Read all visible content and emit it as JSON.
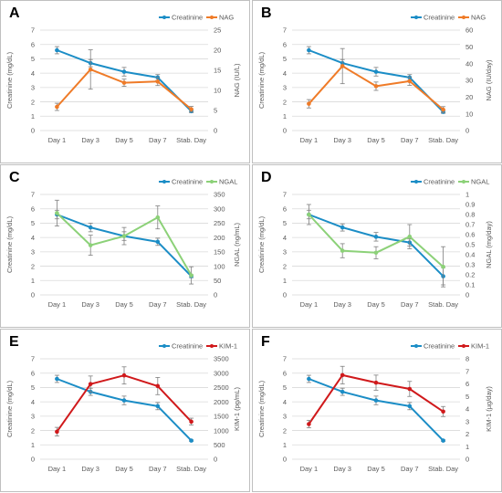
{
  "chart_data": [
    {
      "panel": "A",
      "type": "line",
      "categories": [
        "Day 1",
        "Day 3",
        "Day 5",
        "Day 7",
        "Stab. Day"
      ],
      "ylabel": "Creatinine (mg/dL)",
      "y2label": "NAG (IU/L)",
      "ylim": [
        0,
        7
      ],
      "yticks": [
        0,
        1,
        2,
        3,
        4,
        5,
        6,
        7
      ],
      "y2lim": [
        0,
        25
      ],
      "y2ticks": [
        0,
        5,
        10,
        15,
        20,
        25
      ],
      "grid": true,
      "legend_position": "top-right",
      "series": [
        {
          "name": "Creatinine",
          "axis": "left",
          "color": "#1b8dc6",
          "values": [
            5.6,
            4.7,
            4.1,
            3.7,
            1.35
          ],
          "errors": [
            0.25,
            0.25,
            0.3,
            0.2,
            0.1
          ]
        },
        {
          "name": "NAG",
          "axis": "right",
          "color": "#ef7b28",
          "values": [
            5.9,
            15.2,
            11.9,
            12.2,
            5.3
          ],
          "errors": [
            0.9,
            4.9,
            0.9,
            1.0,
            0.7
          ]
        }
      ]
    },
    {
      "panel": "B",
      "type": "line",
      "categories": [
        "Day 1",
        "Day 3",
        "Day 5",
        "Day 7",
        "Stab. Day"
      ],
      "ylabel": "Creatinine (mg/dL)",
      "y2label": "NAG (IU/day)",
      "ylim": [
        0,
        7
      ],
      "yticks": [
        0,
        1,
        2,
        3,
        4,
        5,
        6,
        7
      ],
      "y2lim": [
        0,
        60
      ],
      "y2ticks": [
        0,
        10,
        20,
        30,
        40,
        50,
        60
      ],
      "grid": true,
      "legend_position": "top-right",
      "series": [
        {
          "name": "Creatinine",
          "axis": "left",
          "color": "#1b8dc6",
          "values": [
            5.6,
            4.7,
            4.1,
            3.7,
            1.3
          ],
          "errors": [
            0.25,
            0.25,
            0.3,
            0.2,
            0.1
          ]
        },
        {
          "name": "NAG",
          "axis": "right",
          "color": "#ef7b28",
          "values": [
            16,
            38.5,
            26.5,
            29.5,
            12.5
          ],
          "errors": [
            2.5,
            10.5,
            2.5,
            2.5,
            1.8
          ]
        }
      ]
    },
    {
      "panel": "C",
      "type": "line",
      "categories": [
        "Day 1",
        "Day 3",
        "Day 5",
        "Day 7",
        "Stab. Day"
      ],
      "ylabel": "Creatinine (mg/dL)",
      "y2label": "NGAL (ng/mL)",
      "ylim": [
        0,
        7
      ],
      "yticks": [
        0,
        1,
        2,
        3,
        4,
        5,
        6,
        7
      ],
      "y2lim": [
        0,
        350
      ],
      "y2ticks": [
        0,
        50,
        100,
        150,
        200,
        250,
        300,
        350
      ],
      "grid": true,
      "legend_position": "top-right",
      "series": [
        {
          "name": "Creatinine",
          "axis": "left",
          "color": "#1b8dc6",
          "values": [
            5.6,
            4.7,
            4.1,
            3.7,
            1.3
          ],
          "errors": [
            0.3,
            0.3,
            0.3,
            0.25,
            0.1
          ]
        },
        {
          "name": "NGAL",
          "axis": "right",
          "color": "#8cd178",
          "values": [
            285,
            173,
            205,
            270,
            68
          ],
          "errors": [
            45,
            35,
            30,
            40,
            30
          ]
        }
      ]
    },
    {
      "panel": "D",
      "type": "line",
      "categories": [
        "Day 1",
        "Day 3",
        "Day 5",
        "Day 7",
        "Stab. Day"
      ],
      "ylabel": "Creatinine (mg/dL)",
      "y2label": "NGAL (mg/day)",
      "ylim": [
        0,
        7
      ],
      "yticks": [
        0,
        1,
        2,
        3,
        4,
        5,
        6,
        7
      ],
      "y2lim": [
        0,
        1.0
      ],
      "y2ticks": [
        0,
        0.1,
        0.2,
        0.3,
        0.4,
        0.5,
        0.6,
        0.7,
        0.8,
        0.9,
        1.0
      ],
      "grid": true,
      "legend_position": "top-right",
      "series": [
        {
          "name": "Creatinine",
          "axis": "left",
          "color": "#1b8dc6",
          "values": [
            5.6,
            4.7,
            4.05,
            3.65,
            1.3
          ],
          "errors": [
            0.3,
            0.25,
            0.3,
            0.25,
            0.6
          ]
        },
        {
          "name": "NGAL",
          "axis": "right",
          "color": "#8cd178",
          "values": [
            0.8,
            0.44,
            0.42,
            0.58,
            0.28
          ],
          "errors": [
            0.1,
            0.07,
            0.06,
            0.12,
            0.2
          ]
        }
      ]
    },
    {
      "panel": "E",
      "type": "line",
      "categories": [
        "Day 1",
        "Day 3",
        "Day 5",
        "Day 7",
        "Stab. Day"
      ],
      "ylabel": "Creatinine (mg/dL)",
      "y2label": "KIM-1 (pg/mL)",
      "ylim": [
        0,
        7
      ],
      "yticks": [
        0,
        1,
        2,
        3,
        4,
        5,
        6,
        7
      ],
      "y2lim": [
        0,
        3500
      ],
      "y2ticks": [
        0,
        500,
        1000,
        1500,
        2000,
        2500,
        3000,
        3500
      ],
      "grid": true,
      "legend_position": "top-right",
      "series": [
        {
          "name": "Creatinine",
          "axis": "left",
          "color": "#1b8dc6",
          "values": [
            5.6,
            4.7,
            4.1,
            3.7,
            1.3
          ],
          "errors": [
            0.25,
            0.25,
            0.3,
            0.25,
            0.05
          ]
        },
        {
          "name": "KIM-1",
          "axis": "right",
          "color": "#d0191b",
          "values": [
            960,
            2620,
            2920,
            2550,
            1310
          ],
          "errors": [
            150,
            280,
            300,
            300,
            120
          ]
        }
      ]
    },
    {
      "panel": "F",
      "type": "line",
      "categories": [
        "Day 1",
        "Day 3",
        "Day 5",
        "Day 7",
        "Stab. Day"
      ],
      "ylabel": "Creatinine (mg/dL)",
      "y2label": "KIM-1 (µg/day)",
      "ylim": [
        0,
        7
      ],
      "yticks": [
        0,
        1,
        2,
        3,
        4,
        5,
        6,
        7
      ],
      "y2lim": [
        0,
        8
      ],
      "y2ticks": [
        0,
        1,
        2,
        3,
        4,
        5,
        6,
        7,
        8
      ],
      "grid": true,
      "legend_position": "top-right",
      "series": [
        {
          "name": "Creatinine",
          "axis": "left",
          "color": "#1b8dc6",
          "values": [
            5.6,
            4.7,
            4.1,
            3.7,
            1.3
          ],
          "errors": [
            0.25,
            0.25,
            0.3,
            0.25,
            0.05
          ]
        },
        {
          "name": "KIM-1",
          "axis": "right",
          "color": "#d0191b",
          "values": [
            2.8,
            6.7,
            6.1,
            5.6,
            3.8
          ],
          "errors": [
            0.3,
            0.7,
            0.6,
            0.6,
            0.4
          ]
        }
      ]
    }
  ]
}
